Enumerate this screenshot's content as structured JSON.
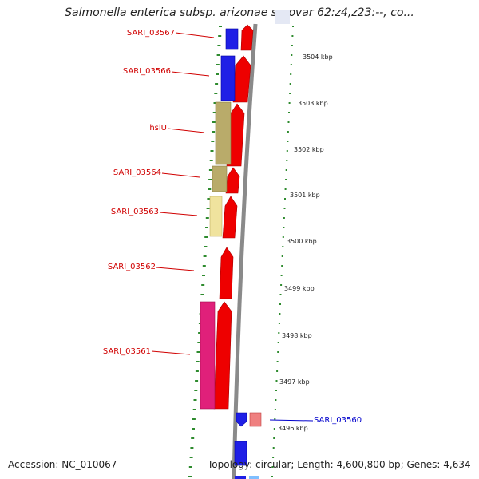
{
  "title": "Salmonella enterica subsp. arizonae serovar 62:z4,z23:--, co...",
  "accession": "Accession: NC_010067",
  "topology": "Topology: circular; Length: 4,600,800 bp; Genes: 4,634",
  "colors": {
    "red": "#ee0000",
    "blue": "#1f1fe6",
    "olive": "#b9ab6a",
    "pale_yellow": "#f0e39e",
    "pink": "#e0207a",
    "salmon": "#ef8080",
    "green_tick": "#2e8b2e",
    "label_red": "#d00000",
    "label_blue": "#0000cc"
  },
  "gene_labels": [
    {
      "name": "SARI_03567",
      "color": "red"
    },
    {
      "name": "SARI_03566",
      "color": "red"
    },
    {
      "name": "hslU",
      "color": "red"
    },
    {
      "name": "SARI_03564",
      "color": "red"
    },
    {
      "name": "SARI_03563",
      "color": "red"
    },
    {
      "name": "SARI_03562",
      "color": "red"
    },
    {
      "name": "SARI_03561",
      "color": "red"
    },
    {
      "name": "SARI_03560",
      "color": "blue"
    }
  ],
  "kbp_ticks": [
    "3504 kbp",
    "3503 kbp",
    "3502 kbp",
    "3501 kbp",
    "3500 kbp",
    "3499 kbp",
    "3498 kbp",
    "3497 kbp",
    "3496 kbp"
  ]
}
